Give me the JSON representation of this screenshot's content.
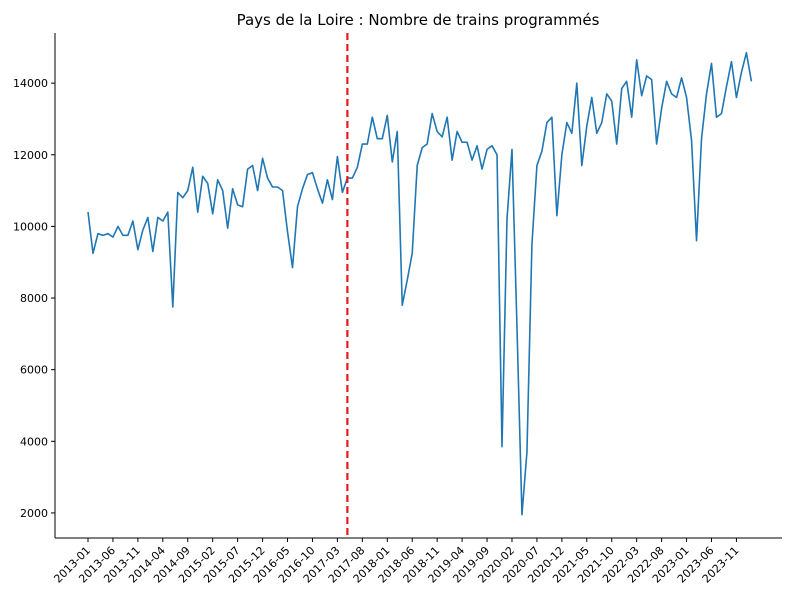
{
  "chart_data": {
    "type": "line",
    "title": "Pays de la Loire : Nombre de trains programmés",
    "xlabel": "",
    "ylabel": "",
    "ylim": [
      1300,
      15400
    ],
    "yticks": [
      2000,
      4000,
      6000,
      8000,
      10000,
      12000,
      14000
    ],
    "xtick_labels": [
      "2013-01",
      "2013-06",
      "2013-11",
      "2014-04",
      "2014-09",
      "2015-02",
      "2015-07",
      "2015-12",
      "2016-05",
      "2016-10",
      "2017-03",
      "2017-08",
      "2018-01",
      "2018-06",
      "2018-11",
      "2019-04",
      "2019-09",
      "2020-02",
      "2020-07",
      "2020-12",
      "2021-05",
      "2021-10",
      "2022-03",
      "2022-08",
      "2023-01",
      "2023-06",
      "2023-11"
    ],
    "vertical_marker": {
      "x": "2017-05",
      "color": "#e41a1c",
      "style": "dashed"
    },
    "grid": false,
    "series": [
      {
        "color": "#1f77b4",
        "x": [
          "2013-01",
          "2013-02",
          "2013-03",
          "2013-04",
          "2013-05",
          "2013-06",
          "2013-07",
          "2013-08",
          "2013-09",
          "2013-10",
          "2013-11",
          "2013-12",
          "2014-01",
          "2014-02",
          "2014-03",
          "2014-04",
          "2014-05",
          "2014-06",
          "2014-07",
          "2014-08",
          "2014-09",
          "2014-10",
          "2014-11",
          "2014-12",
          "2015-01",
          "2015-02",
          "2015-03",
          "2015-04",
          "2015-05",
          "2015-06",
          "2015-07",
          "2015-08",
          "2015-09",
          "2015-10",
          "2015-11",
          "2015-12",
          "2016-01",
          "2016-02",
          "2016-03",
          "2016-04",
          "2016-05",
          "2016-06",
          "2016-07",
          "2016-08",
          "2016-09",
          "2016-10",
          "2016-11",
          "2016-12",
          "2017-01",
          "2017-02",
          "2017-03",
          "2017-04",
          "2017-05",
          "2017-06",
          "2017-07",
          "2017-08",
          "2017-09",
          "2017-10",
          "2017-11",
          "2017-12",
          "2018-01",
          "2018-02",
          "2018-03",
          "2018-04",
          "2018-05",
          "2018-06",
          "2018-07",
          "2018-08",
          "2018-09",
          "2018-10",
          "2018-11",
          "2018-12",
          "2019-01",
          "2019-02",
          "2019-03",
          "2019-04",
          "2019-05",
          "2019-06",
          "2019-07",
          "2019-08",
          "2019-09",
          "2019-10",
          "2019-11",
          "2019-12",
          "2020-01",
          "2020-02",
          "2020-03",
          "2020-04",
          "2020-05",
          "2020-06",
          "2020-07",
          "2020-08",
          "2020-09",
          "2020-10",
          "2020-11",
          "2020-12",
          "2021-01",
          "2021-02",
          "2021-03",
          "2021-04",
          "2021-05",
          "2021-06",
          "2021-07",
          "2021-08",
          "2021-09",
          "2021-10",
          "2021-11",
          "2021-12",
          "2022-01",
          "2022-02",
          "2022-03",
          "2022-04",
          "2022-05",
          "2022-06",
          "2022-07",
          "2022-08",
          "2022-09",
          "2022-10",
          "2022-11",
          "2022-12",
          "2023-01",
          "2023-02",
          "2023-03",
          "2023-04",
          "2023-05",
          "2023-06",
          "2023-07",
          "2023-08",
          "2023-09",
          "2023-10",
          "2023-11",
          "2023-12",
          "2024-01",
          "2024-02"
        ],
        "values": [
          10400,
          9250,
          9800,
          9750,
          9800,
          9700,
          10000,
          9750,
          9750,
          10150,
          9350,
          9900,
          10250,
          9300,
          10250,
          10150,
          10400,
          7750,
          10950,
          10800,
          11000,
          11650,
          10400,
          11400,
          11200,
          10350,
          11300,
          11000,
          9950,
          11050,
          10600,
          10550,
          11600,
          11700,
          11000,
          11900,
          11350,
          11100,
          11100,
          11000,
          9850,
          8850,
          10550,
          11050,
          11450,
          11500,
          11050,
          10650,
          11300,
          10750,
          11950,
          10950,
          11350,
          11350,
          11650,
          12300,
          12300,
          13050,
          12450,
          12450,
          13100,
          11800,
          12650,
          7800,
          8500,
          9250,
          11700,
          12200,
          12300,
          13150,
          12650,
          12500,
          13050,
          11850,
          12650,
          12350,
          12350,
          11850,
          12250,
          11600,
          12150,
          12250,
          12000,
          3850,
          10200,
          12150,
          7200,
          1950,
          3700,
          9500,
          11700,
          12100,
          12900,
          13050,
          10300,
          12000,
          12900,
          12600,
          14000,
          11700,
          12800,
          13600,
          12600,
          12900,
          13700,
          13500,
          12300,
          13850,
          14050,
          13050,
          14650,
          13650,
          14200,
          14100,
          12300,
          13300,
          14050,
          13700,
          13600,
          14150,
          13600,
          12400,
          9600,
          12450,
          13700,
          14550,
          13050,
          13150,
          13900,
          14600,
          13600,
          14300,
          14850,
          14050
        ]
      }
    ]
  }
}
